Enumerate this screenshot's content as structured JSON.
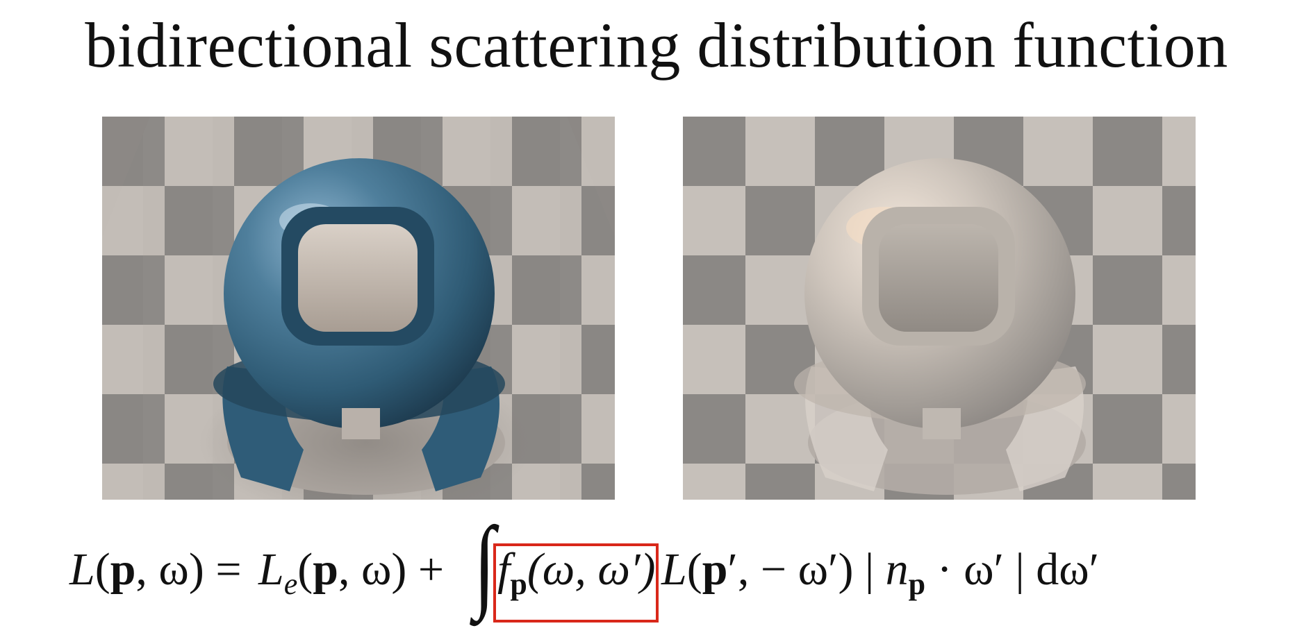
{
  "slide": {
    "title": "bidirectional scattering distribution function"
  },
  "images": {
    "left": {
      "icon": "glossy-blue-material-ball-render"
    },
    "right": {
      "icon": "rough-glass-material-ball-render"
    }
  },
  "equation": {
    "lhs_L": "L",
    "lhs_args_open": "(",
    "lhs_p": "p",
    "lhs_rest": ", ω) = ",
    "le_L": "L",
    "le_sub": "e",
    "le_open": "(",
    "le_p": "p",
    "le_rest": ", ω) +",
    "integral": "∫",
    "f": "f",
    "f_sub": "p",
    "f_args": "(ω, ω′)",
    "l2_L": "L",
    "l2_open": "(",
    "l2_p": "p",
    "l2_rest": "′, − ω′) | ",
    "n": "n",
    "n_sub": "p",
    "tail": " · ω′ | dω′",
    "highlight_color": "#d9281a"
  }
}
